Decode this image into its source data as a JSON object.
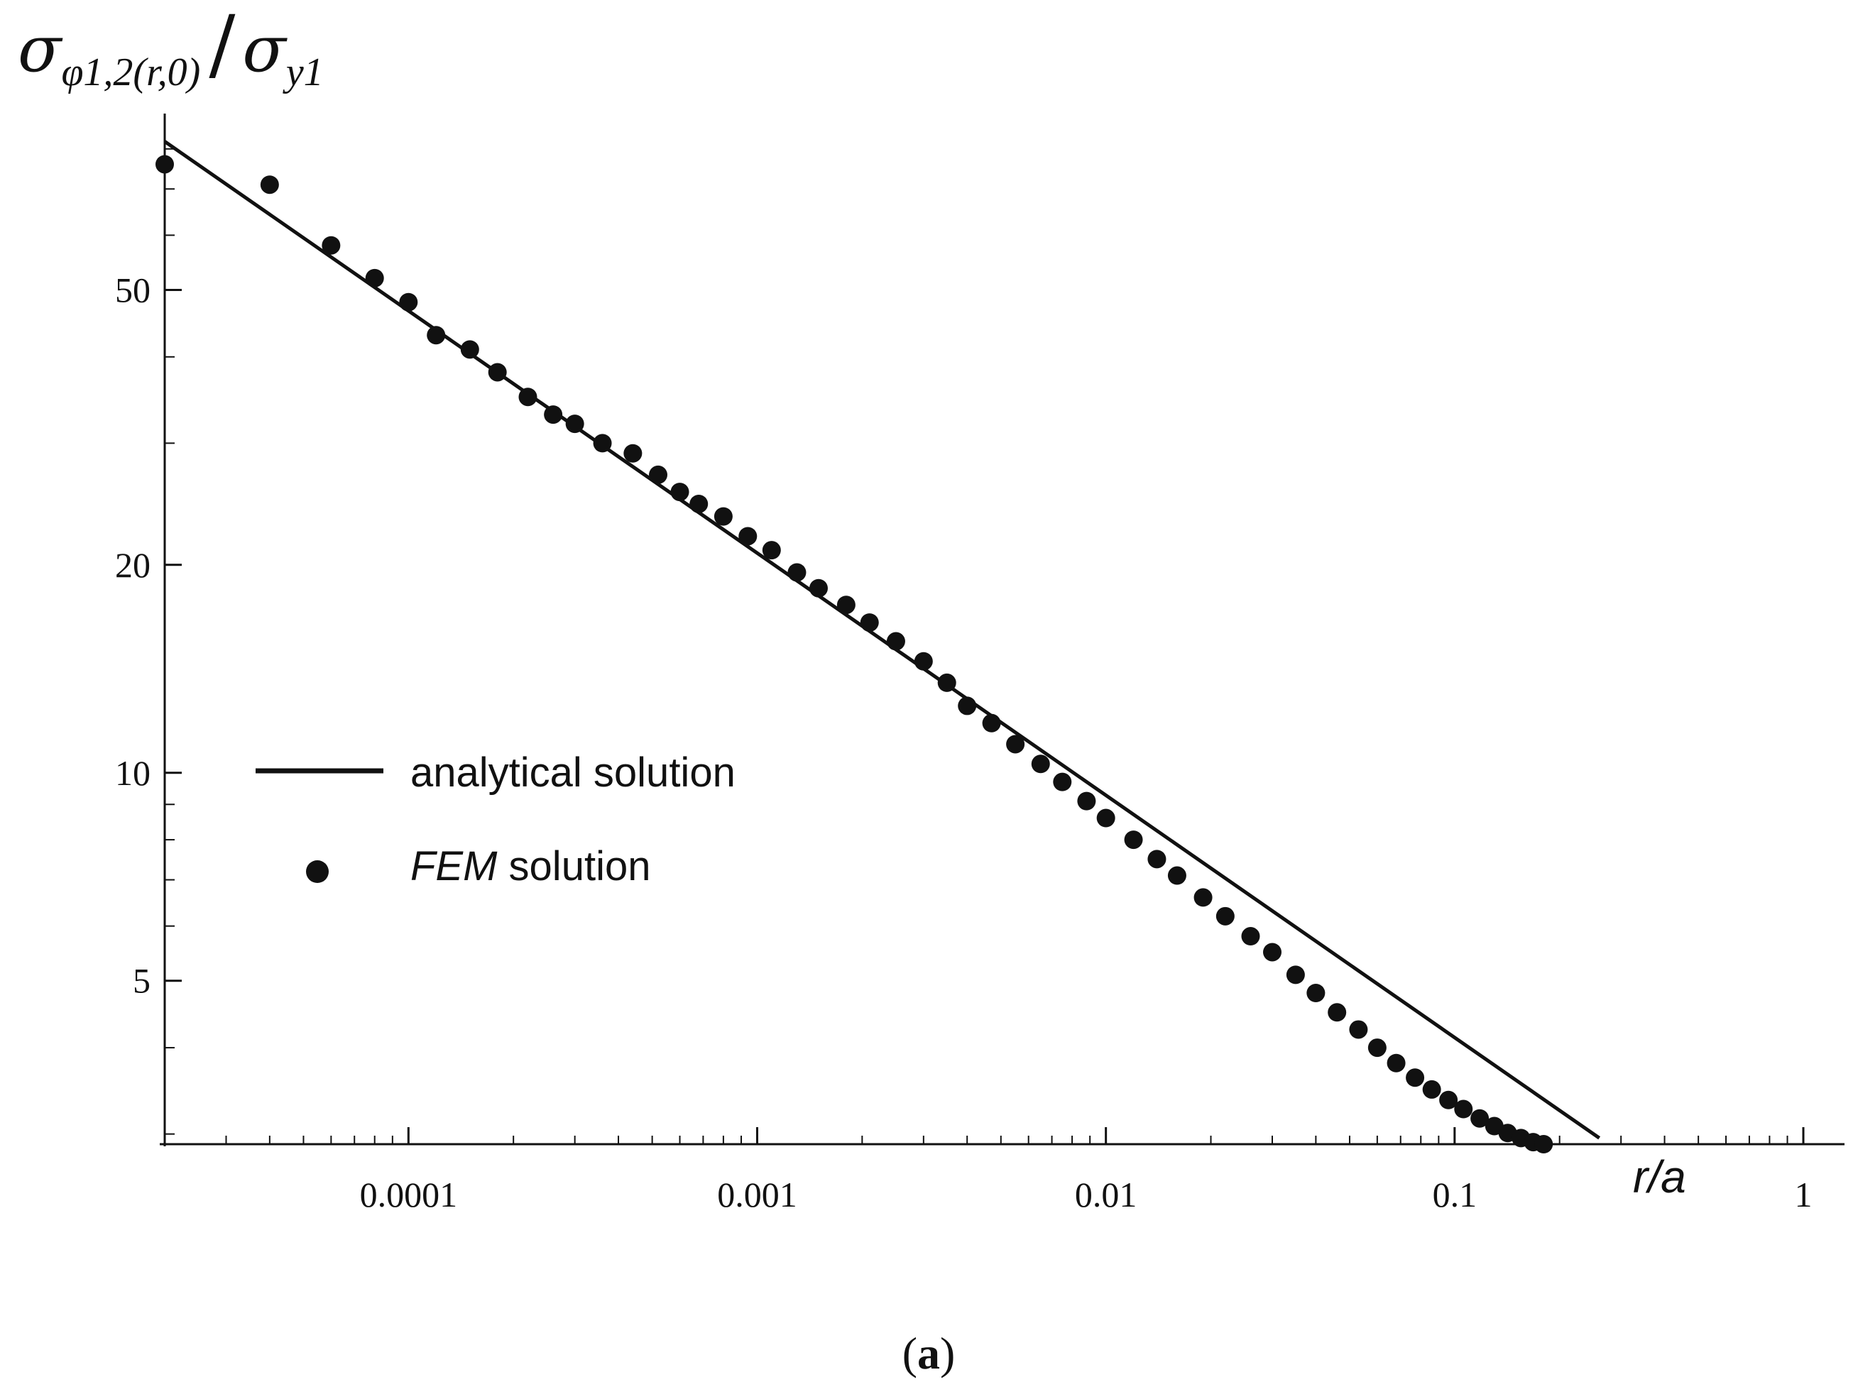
{
  "chart_data": {
    "type": "scatter",
    "title": "",
    "xlabel": "r/a",
    "ylabel_parts": {
      "main": "σ",
      "sub": "φ1,2(r,0)",
      "slash": "/",
      "denom": "σ",
      "denom_sub": "y1"
    },
    "x_scale": "log",
    "y_scale": "log",
    "xlim": [
      2e-05,
      1
    ],
    "ylim": [
      2.9,
      90
    ],
    "x_ticks": [
      {
        "value": 0.0001,
        "label": "0.0001"
      },
      {
        "value": 0.001,
        "label": "0.001"
      },
      {
        "value": 0.01,
        "label": "0.01"
      },
      {
        "value": 0.1,
        "label": "0.1"
      },
      {
        "value": 1,
        "label": "1"
      }
    ],
    "y_ticks": [
      {
        "value": 5,
        "label": "5"
      },
      {
        "value": 10,
        "label": "10"
      },
      {
        "value": 20,
        "label": "20"
      },
      {
        "value": 50,
        "label": "50"
      }
    ],
    "grid": false,
    "legend_position": "left-middle",
    "series": [
      {
        "name": "analytical solution",
        "kind": "line",
        "x": [
          2e-05,
          0.26
        ],
        "y": [
          82,
          2.96
        ]
      },
      {
        "name_italic": "FEM",
        "name_rest": " solution",
        "kind": "points",
        "x": [
          2e-05,
          4e-05,
          6e-05,
          8e-05,
          0.0001,
          0.00012,
          0.00015,
          0.00018,
          0.00022,
          0.00026,
          0.0003,
          0.00036,
          0.00044,
          0.00052,
          0.0006,
          0.00068,
          0.0008,
          0.00094,
          0.0011,
          0.0013,
          0.0015,
          0.0018,
          0.0021,
          0.0025,
          0.003,
          0.0035,
          0.004,
          0.0047,
          0.0055,
          0.0065,
          0.0075,
          0.0088,
          0.01,
          0.012,
          0.014,
          0.016,
          0.019,
          0.022,
          0.026,
          0.03,
          0.035,
          0.04,
          0.046,
          0.053,
          0.06,
          0.068,
          0.077,
          0.086,
          0.096,
          0.106,
          0.118,
          0.13,
          0.142,
          0.155,
          0.168,
          0.18
        ],
        "y": [
          76,
          71,
          58,
          52,
          48,
          43,
          41,
          38,
          35,
          33,
          32,
          30,
          29,
          27,
          25.5,
          24.5,
          23.5,
          22,
          21,
          19.5,
          18.5,
          17.5,
          16.5,
          15.5,
          14.5,
          13.5,
          12.5,
          11.8,
          11,
          10.3,
          9.7,
          9.1,
          8.6,
          8.0,
          7.5,
          7.1,
          6.6,
          6.2,
          5.8,
          5.5,
          5.1,
          4.8,
          4.5,
          4.25,
          4.0,
          3.8,
          3.62,
          3.48,
          3.36,
          3.26,
          3.16,
          3.08,
          3.01,
          2.96,
          2.92,
          2.9
        ]
      }
    ],
    "caption_open": "(",
    "caption_letter": "a",
    "caption_close": ")"
  }
}
